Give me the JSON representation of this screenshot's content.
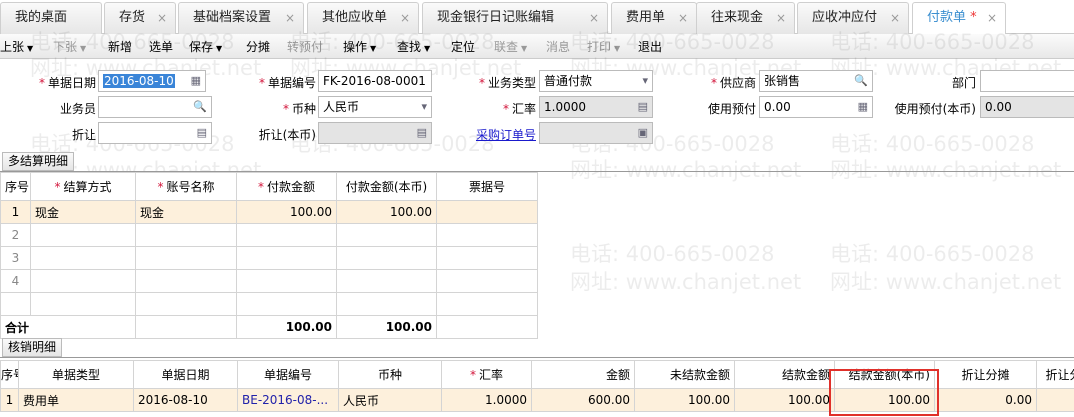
{
  "tabs": [
    {
      "label": "我的桌面",
      "closable": false
    },
    {
      "label": "存货",
      "closable": true
    },
    {
      "label": "基础档案设置",
      "closable": true
    },
    {
      "label": "其他应收单",
      "closable": true
    },
    {
      "label": "现金银行日记账编辑",
      "closable": true
    },
    {
      "label": "费用单",
      "closable": true
    },
    {
      "label": "往来现金",
      "closable": true
    },
    {
      "label": "应收冲应付",
      "closable": true
    },
    {
      "label": "付款单",
      "closable": true,
      "active": true,
      "modified_mark": "*"
    }
  ],
  "close_glyph": "×",
  "toolbar": [
    "上张",
    "下张",
    "新增",
    "选单",
    "保存",
    "分摊",
    "转预付",
    "操作",
    "查找",
    "定位",
    "联查",
    "消息",
    "打印",
    "退出"
  ],
  "form": {
    "date_label": "单据日期",
    "date_value": "2016-08-10",
    "code_label": "单据编号",
    "code_value": "FK-2016-08-0001",
    "biz_type_label": "业务类型",
    "biz_type_value": "普通付款",
    "supplier_label": "供应商",
    "supplier_value": "张销售",
    "dept_label": "部门",
    "dept_value": "",
    "staff_label": "业务员",
    "staff_value": "",
    "currency_label": "币种",
    "currency_value": "人民币",
    "rate_label": "汇率",
    "rate_value": "1.0000",
    "use_prepay_label": "使用预付",
    "use_prepay_value": "0.00",
    "use_prepay_local_label": "使用预付(本币)",
    "use_prepay_local_value": "0.00",
    "discount_label": "折让",
    "discount_value": "",
    "discount_local_label": "折让(本币)",
    "discount_local_value": "",
    "po_link": "采购订单号",
    "po_value": ""
  },
  "settle": {
    "section": "多结算明细",
    "headers": [
      "序号",
      "结算方式",
      "账号名称",
      "付款金额",
      "付款金额(本币)",
      "票据号"
    ],
    "required": [
      false,
      true,
      true,
      true,
      false,
      false
    ],
    "rows": [
      [
        "1",
        "现金",
        "现金",
        "100.00",
        "100.00",
        ""
      ],
      [
        "2",
        "",
        "",
        "",
        "",
        ""
      ],
      [
        "3",
        "",
        "",
        "",
        "",
        ""
      ],
      [
        "4",
        "",
        "",
        "",
        "",
        ""
      ],
      [
        "",
        "",
        "",
        "",
        "",
        ""
      ]
    ],
    "total": [
      "合计",
      "",
      "",
      "100.00",
      "100.00",
      ""
    ]
  },
  "verify": {
    "section": "核销明细",
    "headers": [
      "序号",
      "单据类型",
      "单据日期",
      "单据编号",
      "币种",
      "汇率",
      "金额",
      "未结款金额",
      "结款金额",
      "结款金额(本币)",
      "折让分摊",
      "折让分"
    ],
    "rows": [
      [
        "1",
        "费用单",
        "2016-08-10",
        "BE-2016-08-...",
        "人民币",
        "1.0000",
        "600.00",
        "100.00",
        "100.00",
        "100.00",
        "0.00",
        ""
      ]
    ]
  },
  "watermark": {
    "phone": "电话: 400-665-0028",
    "web": "网址: www.chanjet.net"
  },
  "colors": {
    "accent": "#3b8fd0",
    "required": "#d2143a",
    "highlight_row": "#fdf0dc",
    "annotation_box": "#e0302a"
  }
}
